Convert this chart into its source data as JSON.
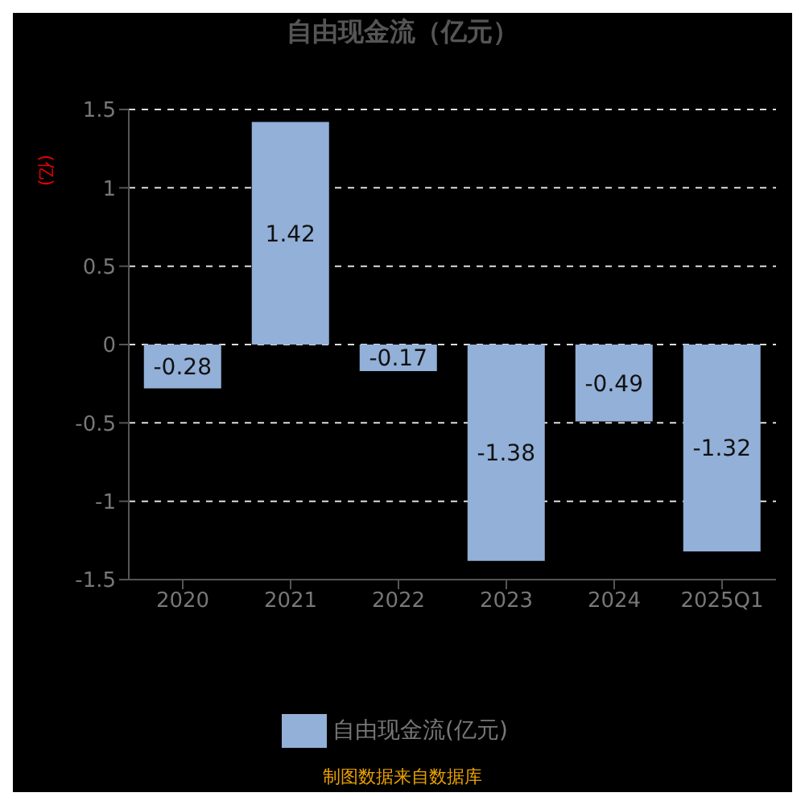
{
  "chart_data": {
    "type": "bar",
    "title": "自由现金流（亿元）",
    "ylabel": "(亿)",
    "categories": [
      "2020",
      "2021",
      "2022",
      "2023",
      "2024",
      "2025Q1"
    ],
    "series": [
      {
        "name": "自由现金流(亿元)",
        "color": "#92b0d8",
        "values": [
          -0.28,
          1.42,
          -0.17,
          -1.38,
          -0.49,
          -1.32
        ]
      }
    ],
    "ylim": [
      -1.5,
      1.5
    ],
    "yticks": [
      -1.5,
      -1,
      -0.5,
      0,
      0.5,
      1,
      1.5
    ],
    "grid": "y",
    "legend": "bottom",
    "data_labels": true,
    "annotations": [
      "制图数据来自数据库"
    ]
  }
}
